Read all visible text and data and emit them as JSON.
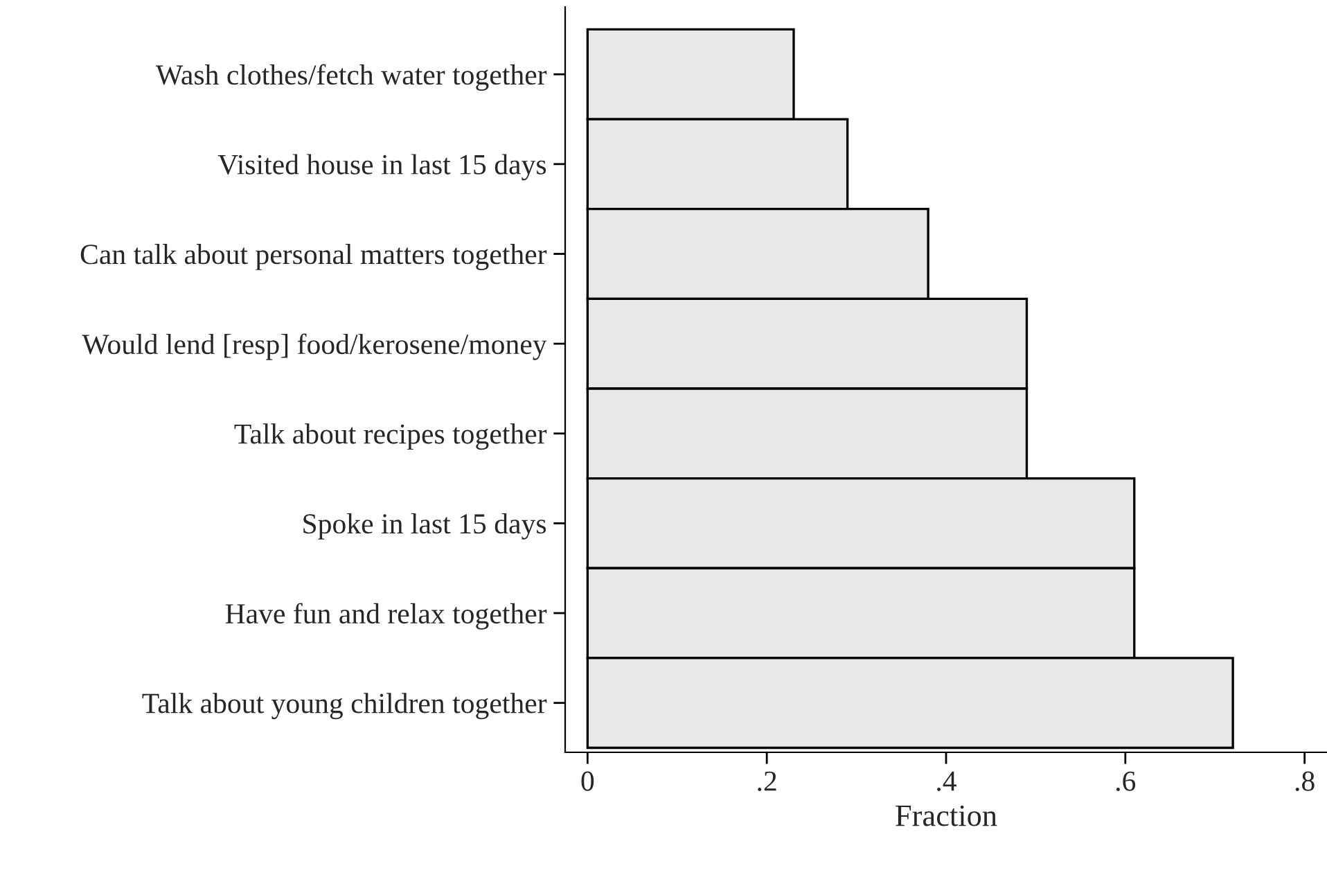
{
  "chart_data": {
    "type": "bar",
    "orientation": "horizontal",
    "xlabel": "Fraction",
    "categories": [
      "Wash clothes/fetch water together",
      "Visited house in last 15 days",
      "Can talk about personal matters together",
      "Would lend [resp] food/kerosene/money",
      "Talk about recipes together",
      "Spoke in last 15 days",
      "Have fun and relax together",
      "Talk about young children together"
    ],
    "values": [
      0.23,
      0.29,
      0.38,
      0.49,
      0.49,
      0.61,
      0.61,
      0.72
    ],
    "color": "#e8e8e8",
    "xlim": [
      -0.025,
      0.825
    ],
    "xticks": [
      0,
      {
        "value": 0.2,
        "label": ".2"
      },
      {
        "value": 0.4,
        "label": ".4"
      },
      {
        "value": 0.6,
        "label": ".6"
      },
      {
        "value": 0.8,
        "label": ".8"
      }
    ],
    "grid": false,
    "legend": false
  }
}
